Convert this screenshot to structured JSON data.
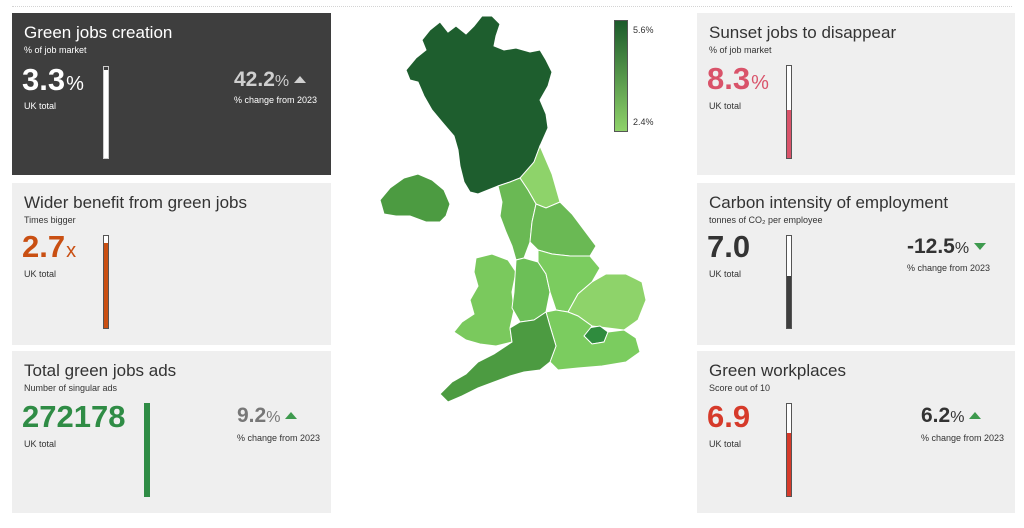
{
  "cards": {
    "green_jobs": {
      "title": "Green jobs creation",
      "subtitle": "% of job market",
      "value": "3.3",
      "unit": "%",
      "scope": "UK total",
      "bar_fill_fraction": 0.97,
      "bar_color": "#ffffff",
      "change": "42.2",
      "change_unit": "%",
      "change_direction": "up",
      "change_label": "% change from 2023"
    },
    "wider_benefit": {
      "title": "Wider benefit from green jobs",
      "subtitle": "Times bigger",
      "value": "2.7",
      "unit": "x",
      "scope": "UK total",
      "bar_fill_fraction": 0.92,
      "bar_color": "#c94f12"
    },
    "green_ads": {
      "title": "Total green jobs ads",
      "subtitle": "Number of singular ads",
      "value": "272178",
      "scope": "UK total",
      "bar_fill_fraction": 1.0,
      "bar_color": "#2f8c45",
      "change": "9.2",
      "change_unit": "%",
      "change_direction": "up",
      "change_label": "% change from 2023"
    },
    "sunset_jobs": {
      "title": "Sunset jobs to disappear",
      "subtitle": "% of job market",
      "value": "8.3",
      "unit": "%",
      "scope": "UK total",
      "bar_fill_fraction": 0.52,
      "bar_color": "#d9536a"
    },
    "carbon": {
      "title": "Carbon intensity of employment",
      "subtitle": "tonnes of CO₂ per employee",
      "value": "7.0",
      "scope": "UK total",
      "bar_fill_fraction": 0.56,
      "bar_color": "#3e3e3e",
      "change": "-12.5",
      "change_unit": "%",
      "change_direction": "down",
      "change_label": "% change from 2023"
    },
    "workplaces": {
      "title": "Green workplaces",
      "subtitle": "Score out of 10",
      "value": "6.9",
      "scope": "UK total",
      "bar_fill_fraction": 0.69,
      "bar_color": "#d63a2a",
      "change": "6.2",
      "change_unit": "%",
      "change_direction": "up",
      "change_label": "% change from 2023"
    }
  },
  "legend": {
    "max_label": "5.6%",
    "min_label": "2.4%",
    "max_color": "#1c5a2b",
    "min_color": "#8fd26a"
  },
  "map_colors": {
    "scotland": "#1e5e2e",
    "northern_ireland": "#4c9b41",
    "north_east": "#8ed36a",
    "north_west": "#6ab954",
    "yorkshire": "#6ab954",
    "wales": "#7ac95d",
    "west_midlands": "#6cbf57",
    "east_midlands": "#7bcc5f",
    "east_england": "#8ed36a",
    "london": "#2f8c3e",
    "south_east": "#7bcc5f",
    "south_west": "#4c9b41"
  }
}
